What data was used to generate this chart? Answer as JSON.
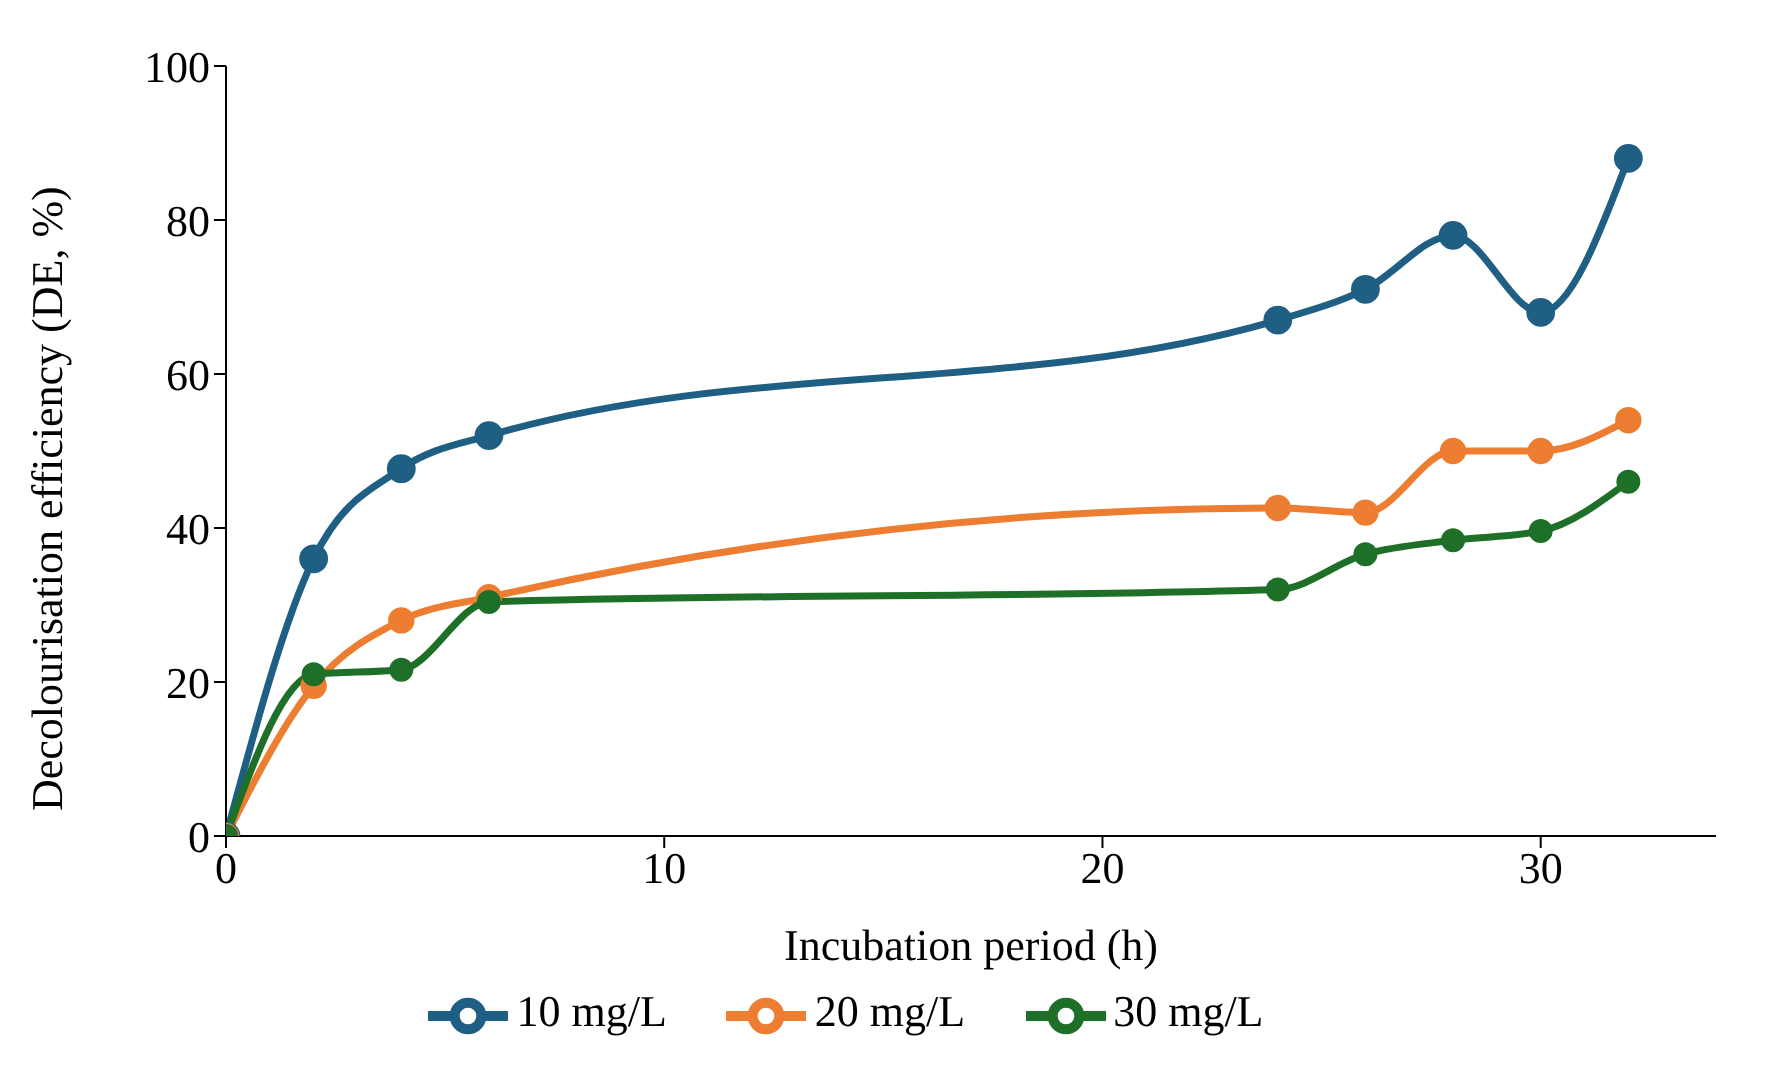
{
  "chart_data": {
    "type": "line",
    "xlabel": "Incubation period (h)",
    "ylabel": "Decolourisation efficiency (DE, %)",
    "x": [
      0,
      2,
      4,
      6,
      24,
      26,
      28,
      30,
      32
    ],
    "series": [
      {
        "name": "10 mg/L",
        "color": "#1f5f84",
        "values": [
          0,
          36,
          47.7,
          52,
          67,
          71,
          78,
          68,
          88
        ]
      },
      {
        "name": "20 mg/L",
        "color": "#ed7d31",
        "values": [
          0,
          19.5,
          28,
          31,
          42.6,
          42,
          50,
          50,
          54
        ]
      },
      {
        "name": "30 mg/L",
        "color": "#1e7028",
        "values": [
          0,
          21,
          21.6,
          30.4,
          32,
          36.6,
          38.4,
          39.6,
          46
        ]
      }
    ],
    "xlim": [
      0,
      34
    ],
    "xticks": [
      0,
      10,
      20,
      30
    ],
    "ylim": [
      0,
      100
    ],
    "yticks": [
      0,
      20,
      40,
      60,
      80,
      100
    ],
    "grid": false,
    "legend": "bottom",
    "marker": "circle",
    "line_style": "solid"
  }
}
